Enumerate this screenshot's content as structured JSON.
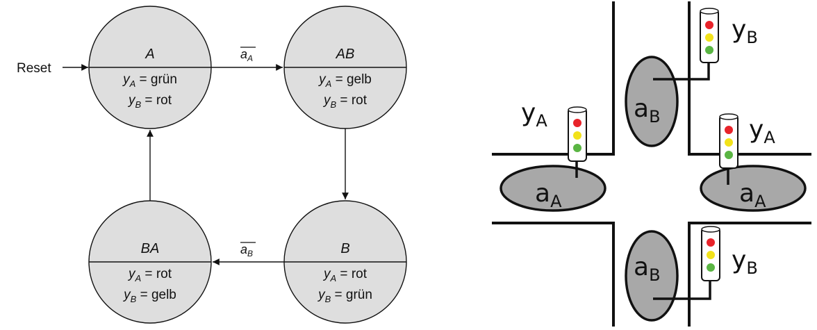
{
  "state_machine": {
    "reset_label": "Reset",
    "states": [
      {
        "id": "A",
        "name": "A",
        "yA": "grün",
        "yB": "rot"
      },
      {
        "id": "AB",
        "name": "AB",
        "yA": "gelb",
        "yB": "rot"
      },
      {
        "id": "B",
        "name": "B",
        "yA": "rot",
        "yB": "grün"
      },
      {
        "id": "BA",
        "name": "BA",
        "yA": "rot",
        "yB": "gelb"
      }
    ],
    "output_prefix_a": "y",
    "output_sub_a": "A",
    "output_prefix_b": "y",
    "output_sub_b": "B",
    "equals": " = ",
    "transition_a_to_ab": {
      "var": "a",
      "sub": "A"
    },
    "transition_b_to_ba": {
      "var": "a",
      "sub": "B"
    }
  },
  "intersection": {
    "sensor_var": "a",
    "light_var": "y",
    "sensor_a_sub": "A",
    "sensor_b_sub": "B",
    "light_a_sub": "A",
    "light_b_sub": "B",
    "colors": {
      "sensor_fill": "#a8a8a8",
      "light_red": "#e8232a",
      "light_yellow": "#f2e21a",
      "light_green": "#5ab543",
      "state_fill": "#dedede"
    }
  }
}
